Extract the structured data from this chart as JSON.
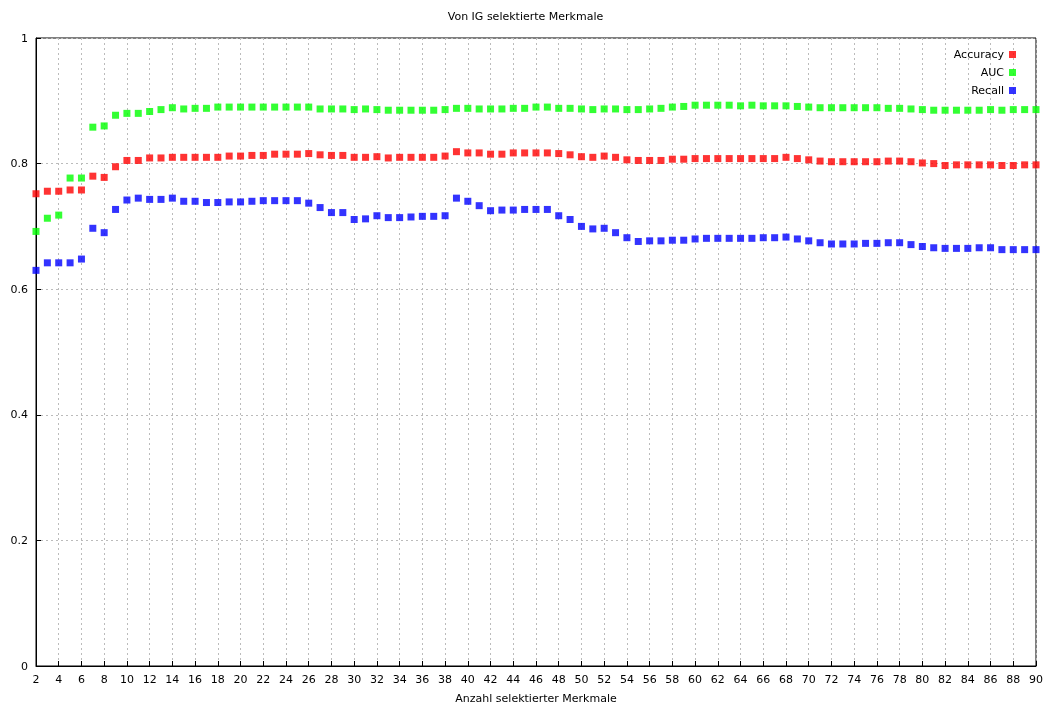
{
  "chart_data": {
    "type": "scatter",
    "title": "Von IG selektierte Merkmale",
    "xlabel": "Anzahl selektierter Merkmale",
    "x": [
      2,
      3,
      4,
      5,
      6,
      7,
      8,
      9,
      10,
      11,
      12,
      13,
      14,
      15,
      16,
      17,
      18,
      19,
      20,
      21,
      22,
      23,
      24,
      25,
      26,
      27,
      28,
      29,
      30,
      31,
      32,
      33,
      34,
      35,
      36,
      37,
      38,
      39,
      40,
      41,
      42,
      43,
      44,
      45,
      46,
      47,
      48,
      49,
      50,
      51,
      52,
      53,
      54,
      55,
      56,
      57,
      58,
      59,
      60,
      61,
      62,
      63,
      64,
      65,
      66,
      67,
      68,
      69,
      70,
      71,
      72,
      73,
      74,
      75,
      76,
      77,
      78,
      79,
      80,
      81,
      82,
      83,
      84,
      85,
      86,
      87,
      88,
      89,
      90
    ],
    "series": [
      {
        "name": "Accuracy",
        "color": "#ff0000",
        "values": [
          0.752,
          0.756,
          0.756,
          0.758,
          0.758,
          0.78,
          0.778,
          0.795,
          0.805,
          0.805,
          0.809,
          0.809,
          0.81,
          0.81,
          0.81,
          0.81,
          0.81,
          0.812,
          0.812,
          0.813,
          0.813,
          0.815,
          0.815,
          0.815,
          0.816,
          0.814,
          0.813,
          0.813,
          0.81,
          0.81,
          0.811,
          0.809,
          0.81,
          0.81,
          0.81,
          0.81,
          0.812,
          0.819,
          0.817,
          0.817,
          0.815,
          0.815,
          0.817,
          0.817,
          0.817,
          0.817,
          0.816,
          0.814,
          0.811,
          0.81,
          0.812,
          0.81,
          0.806,
          0.805,
          0.805,
          0.805,
          0.807,
          0.807,
          0.808,
          0.808,
          0.808,
          0.808,
          0.808,
          0.808,
          0.808,
          0.808,
          0.81,
          0.808,
          0.806,
          0.804,
          0.803,
          0.803,
          0.803,
          0.803,
          0.803,
          0.804,
          0.804,
          0.803,
          0.801,
          0.8,
          0.797,
          0.798,
          0.798,
          0.798,
          0.798,
          0.797,
          0.797,
          0.798,
          0.798
        ]
      },
      {
        "name": "AUC",
        "color": "#00ff00",
        "values": [
          0.692,
          0.713,
          0.718,
          0.777,
          0.777,
          0.858,
          0.86,
          0.877,
          0.88,
          0.88,
          0.883,
          0.886,
          0.889,
          0.887,
          0.888,
          0.888,
          0.89,
          0.89,
          0.89,
          0.89,
          0.89,
          0.89,
          0.89,
          0.89,
          0.89,
          0.887,
          0.887,
          0.887,
          0.886,
          0.887,
          0.886,
          0.885,
          0.885,
          0.885,
          0.885,
          0.885,
          0.886,
          0.888,
          0.888,
          0.887,
          0.887,
          0.887,
          0.888,
          0.888,
          0.89,
          0.89,
          0.888,
          0.888,
          0.887,
          0.886,
          0.887,
          0.887,
          0.886,
          0.886,
          0.887,
          0.888,
          0.89,
          0.891,
          0.893,
          0.893,
          0.893,
          0.893,
          0.892,
          0.893,
          0.892,
          0.892,
          0.892,
          0.891,
          0.89,
          0.889,
          0.889,
          0.889,
          0.889,
          0.889,
          0.889,
          0.888,
          0.888,
          0.887,
          0.886,
          0.885,
          0.885,
          0.885,
          0.885,
          0.885,
          0.886,
          0.885,
          0.886,
          0.886,
          0.886
        ]
      },
      {
        "name": "Recall",
        "color": "#0000ff",
        "values": [
          0.63,
          0.642,
          0.642,
          0.642,
          0.648,
          0.697,
          0.69,
          0.727,
          0.742,
          0.745,
          0.743,
          0.743,
          0.745,
          0.74,
          0.74,
          0.738,
          0.738,
          0.739,
          0.739,
          0.74,
          0.741,
          0.741,
          0.741,
          0.741,
          0.737,
          0.73,
          0.722,
          0.722,
          0.711,
          0.712,
          0.717,
          0.714,
          0.714,
          0.715,
          0.716,
          0.716,
          0.717,
          0.745,
          0.74,
          0.733,
          0.725,
          0.726,
          0.726,
          0.727,
          0.727,
          0.727,
          0.717,
          0.711,
          0.7,
          0.696,
          0.697,
          0.69,
          0.682,
          0.676,
          0.677,
          0.677,
          0.678,
          0.678,
          0.68,
          0.681,
          0.681,
          0.681,
          0.681,
          0.681,
          0.682,
          0.682,
          0.683,
          0.68,
          0.677,
          0.674,
          0.672,
          0.672,
          0.672,
          0.673,
          0.673,
          0.674,
          0.674,
          0.671,
          0.668,
          0.666,
          0.665,
          0.665,
          0.665,
          0.666,
          0.666,
          0.663,
          0.663,
          0.663,
          0.663
        ]
      }
    ],
    "xlim": [
      2,
      90
    ],
    "xticks": [
      2,
      4,
      6,
      8,
      10,
      12,
      14,
      16,
      18,
      20,
      22,
      24,
      26,
      28,
      30,
      32,
      34,
      36,
      38,
      40,
      42,
      44,
      46,
      48,
      50,
      52,
      54,
      56,
      58,
      60,
      62,
      64,
      66,
      68,
      70,
      72,
      74,
      76,
      78,
      80,
      82,
      84,
      86,
      88,
      90
    ],
    "ylim": [
      0,
      1
    ],
    "yticks": [
      0,
      0.2,
      0.4,
      0.6,
      0.8,
      1
    ],
    "grid": true,
    "legend": "top right",
    "marker": "square"
  }
}
